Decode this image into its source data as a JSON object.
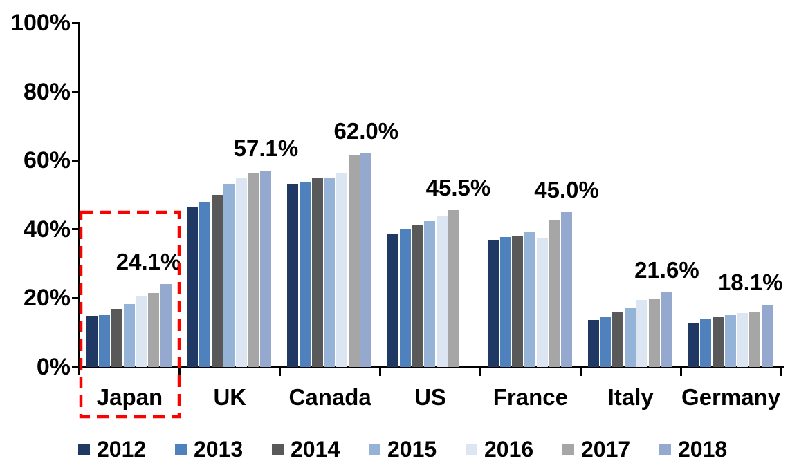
{
  "chart_data": {
    "type": "bar",
    "title": "",
    "xlabel": "",
    "ylabel": "",
    "ylim": [
      0,
      100
    ],
    "y_ticks": [
      "0%",
      "20%",
      "40%",
      "60%",
      "80%",
      "100%"
    ],
    "grid": false,
    "legend_position": "bottom",
    "categories": [
      "Japan",
      "UK",
      "Canada",
      "US",
      "France",
      "Italy",
      "Germany"
    ],
    "series": [
      {
        "name": "2012",
        "color": "#1F3864",
        "values": [
          14.9,
          46.5,
          53.2,
          38.6,
          36.8,
          13.6,
          12.8
        ]
      },
      {
        "name": "2013",
        "color": "#4F81BD",
        "values": [
          15.1,
          47.8,
          53.6,
          40.2,
          37.8,
          14.4,
          14.0
        ]
      },
      {
        "name": "2014",
        "color": "#595959",
        "values": [
          16.9,
          50.0,
          55.0,
          41.2,
          37.9,
          15.8,
          14.5
        ]
      },
      {
        "name": "2015",
        "color": "#95B3D7",
        "values": [
          18.2,
          53.2,
          54.8,
          42.4,
          39.4,
          17.2,
          15.0
        ]
      },
      {
        "name": "2016",
        "color": "#DCE6F2",
        "values": [
          20.4,
          55.0,
          56.4,
          43.8,
          37.6,
          19.4,
          15.6
        ]
      },
      {
        "name": "2017",
        "color": "#A6A6A6",
        "values": [
          21.4,
          56.2,
          61.5,
          45.5,
          42.6,
          19.6,
          16.0
        ]
      },
      {
        "name": "2018",
        "color": "#95A8CD",
        "values": [
          24.1,
          57.1,
          62.0,
          null,
          45.0,
          21.6,
          18.1
        ]
      }
    ],
    "value_labels": [
      "24.1%",
      "57.1%",
      "62.0%",
      "45.5%",
      "45.0%",
      "21.6%",
      "18.1%"
    ],
    "highlight": {
      "category": "Japan",
      "style": "dashed-box",
      "color": "#FF0000"
    }
  }
}
